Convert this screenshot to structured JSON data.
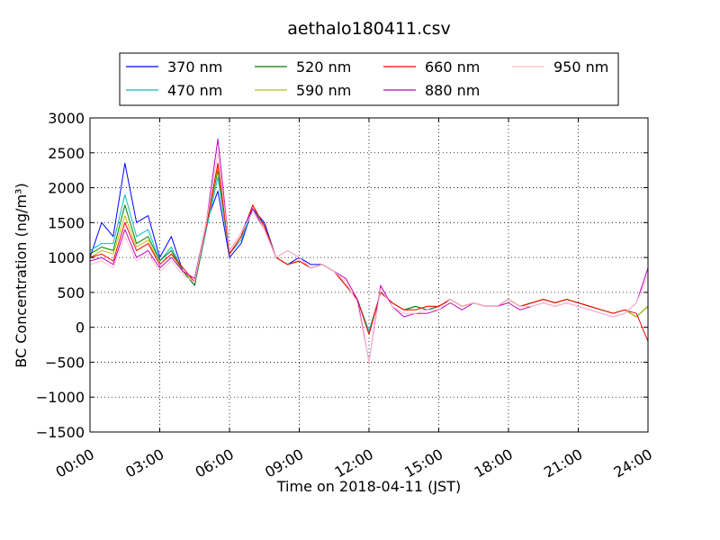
{
  "chart_data": {
    "type": "line",
    "title": "aethalo180411.csv",
    "xlabel": "Time on 2018-04-11 (JST)",
    "ylabel": "BC Concentration (ng/m³)",
    "xlim": [
      "00:00",
      "24:00"
    ],
    "ylim": [
      -1500,
      3000
    ],
    "xticks": [
      "00:00",
      "03:00",
      "06:00",
      "09:00",
      "12:00",
      "15:00",
      "18:00",
      "21:00",
      "24:00"
    ],
    "yticks": [
      "3000",
      "2500",
      "2000",
      "1500",
      "1000",
      "500",
      "0",
      "−500",
      "−1000",
      "−1500"
    ],
    "grid": true,
    "legend_position": "top-center",
    "x": [
      "00:00",
      "00:30",
      "01:00",
      "01:30",
      "02:00",
      "02:30",
      "03:00",
      "03:30",
      "04:00",
      "04:30",
      "05:00",
      "05:30",
      "06:00",
      "06:30",
      "07:00",
      "07:30",
      "08:00",
      "08:30",
      "09:00",
      "09:30",
      "10:00",
      "10:30",
      "11:00",
      "11:30",
      "12:00",
      "12:30",
      "13:00",
      "13:30",
      "14:00",
      "14:30",
      "15:00",
      "15:30",
      "16:00",
      "16:30",
      "17:00",
      "17:30",
      "18:00",
      "18:30",
      "19:00",
      "19:30",
      "20:00",
      "20:30",
      "21:00",
      "21:30",
      "22:00",
      "22:30",
      "23:00",
      "23:30",
      "24:00"
    ],
    "series": [
      {
        "name": "370 nm",
        "color": "#0000ff",
        "values": [
          1000,
          1500,
          1300,
          2350,
          1500,
          1600,
          1000,
          1300,
          800,
          600,
          1500,
          1950,
          1000,
          1200,
          1700,
          1500,
          1000,
          900,
          1000,
          900,
          900,
          800,
          600,
          400,
          -100,
          500,
          350,
          250,
          300,
          250,
          300,
          400,
          300,
          350,
          300,
          300,
          400,
          300,
          350,
          400,
          350,
          400,
          350,
          300,
          250,
          200,
          250,
          150,
          300
        ]
      },
      {
        "name": "470 nm",
        "color": "#00bfbf",
        "values": [
          1100,
          1200,
          1200,
          1900,
          1300,
          1400,
          950,
          1150,
          800,
          600,
          1400,
          2150,
          1050,
          1250,
          1700,
          1450,
          1000,
          900,
          950,
          850,
          900,
          800,
          600,
          400,
          -50,
          500,
          350,
          250,
          300,
          250,
          300,
          400,
          300,
          350,
          300,
          300,
          400,
          300,
          350,
          400,
          350,
          400,
          350,
          300,
          250,
          200,
          250,
          150,
          300
        ]
      },
      {
        "name": "520 nm",
        "color": "#008000",
        "values": [
          1050,
          1150,
          1100,
          1750,
          1200,
          1300,
          950,
          1100,
          800,
          600,
          1450,
          2250,
          1050,
          1300,
          1750,
          1450,
          1000,
          900,
          950,
          850,
          900,
          800,
          600,
          400,
          -100,
          500,
          350,
          250,
          300,
          250,
          300,
          400,
          300,
          350,
          300,
          300,
          400,
          300,
          350,
          400,
          350,
          400,
          350,
          300,
          250,
          200,
          250,
          150,
          300
        ]
      },
      {
        "name": "590 nm",
        "color": "#bfbf00",
        "values": [
          1000,
          1100,
          1050,
          1600,
          1150,
          1250,
          900,
          1050,
          800,
          650,
          1450,
          2300,
          1050,
          1300,
          1750,
          1450,
          1000,
          900,
          950,
          850,
          900,
          800,
          600,
          400,
          -100,
          500,
          350,
          250,
          250,
          300,
          300,
          400,
          300,
          350,
          300,
          300,
          400,
          300,
          350,
          400,
          350,
          400,
          350,
          300,
          250,
          200,
          250,
          150,
          300
        ]
      },
      {
        "name": "660 nm",
        "color": "#ff0000",
        "values": [
          1000,
          1050,
          950,
          1500,
          1100,
          1200,
          900,
          1050,
          850,
          650,
          1450,
          2350,
          1050,
          1300,
          1750,
          1450,
          1000,
          900,
          950,
          850,
          900,
          800,
          600,
          400,
          -100,
          500,
          350,
          250,
          250,
          300,
          300,
          400,
          300,
          350,
          300,
          300,
          400,
          300,
          350,
          400,
          350,
          400,
          350,
          300,
          250,
          200,
          250,
          200,
          -200
        ]
      },
      {
        "name": "880 nm",
        "color": "#bf00bf",
        "values": [
          950,
          1000,
          900,
          1400,
          1000,
          1100,
          850,
          1000,
          800,
          700,
          1500,
          2700,
          1100,
          1350,
          1700,
          1400,
          1000,
          1100,
          1000,
          850,
          900,
          800,
          700,
          400,
          -500,
          600,
          300,
          150,
          200,
          200,
          250,
          350,
          250,
          350,
          300,
          300,
          350,
          250,
          300,
          350,
          300,
          350,
          300,
          250,
          200,
          150,
          200,
          350,
          850
        ]
      },
      {
        "name": "950 nm",
        "color": "#ffc0cb",
        "values": [
          900,
          950,
          850,
          1300,
          950,
          1050,
          800,
          950,
          750,
          650,
          1500,
          2500,
          1100,
          1350,
          1650,
          1400,
          1000,
          1100,
          1000,
          850,
          900,
          800,
          650,
          350,
          -500,
          550,
          300,
          200,
          200,
          250,
          250,
          400,
          300,
          350,
          300,
          300,
          400,
          300,
          300,
          350,
          300,
          350,
          300,
          250,
          200,
          150,
          200,
          350,
          750
        ]
      }
    ]
  }
}
